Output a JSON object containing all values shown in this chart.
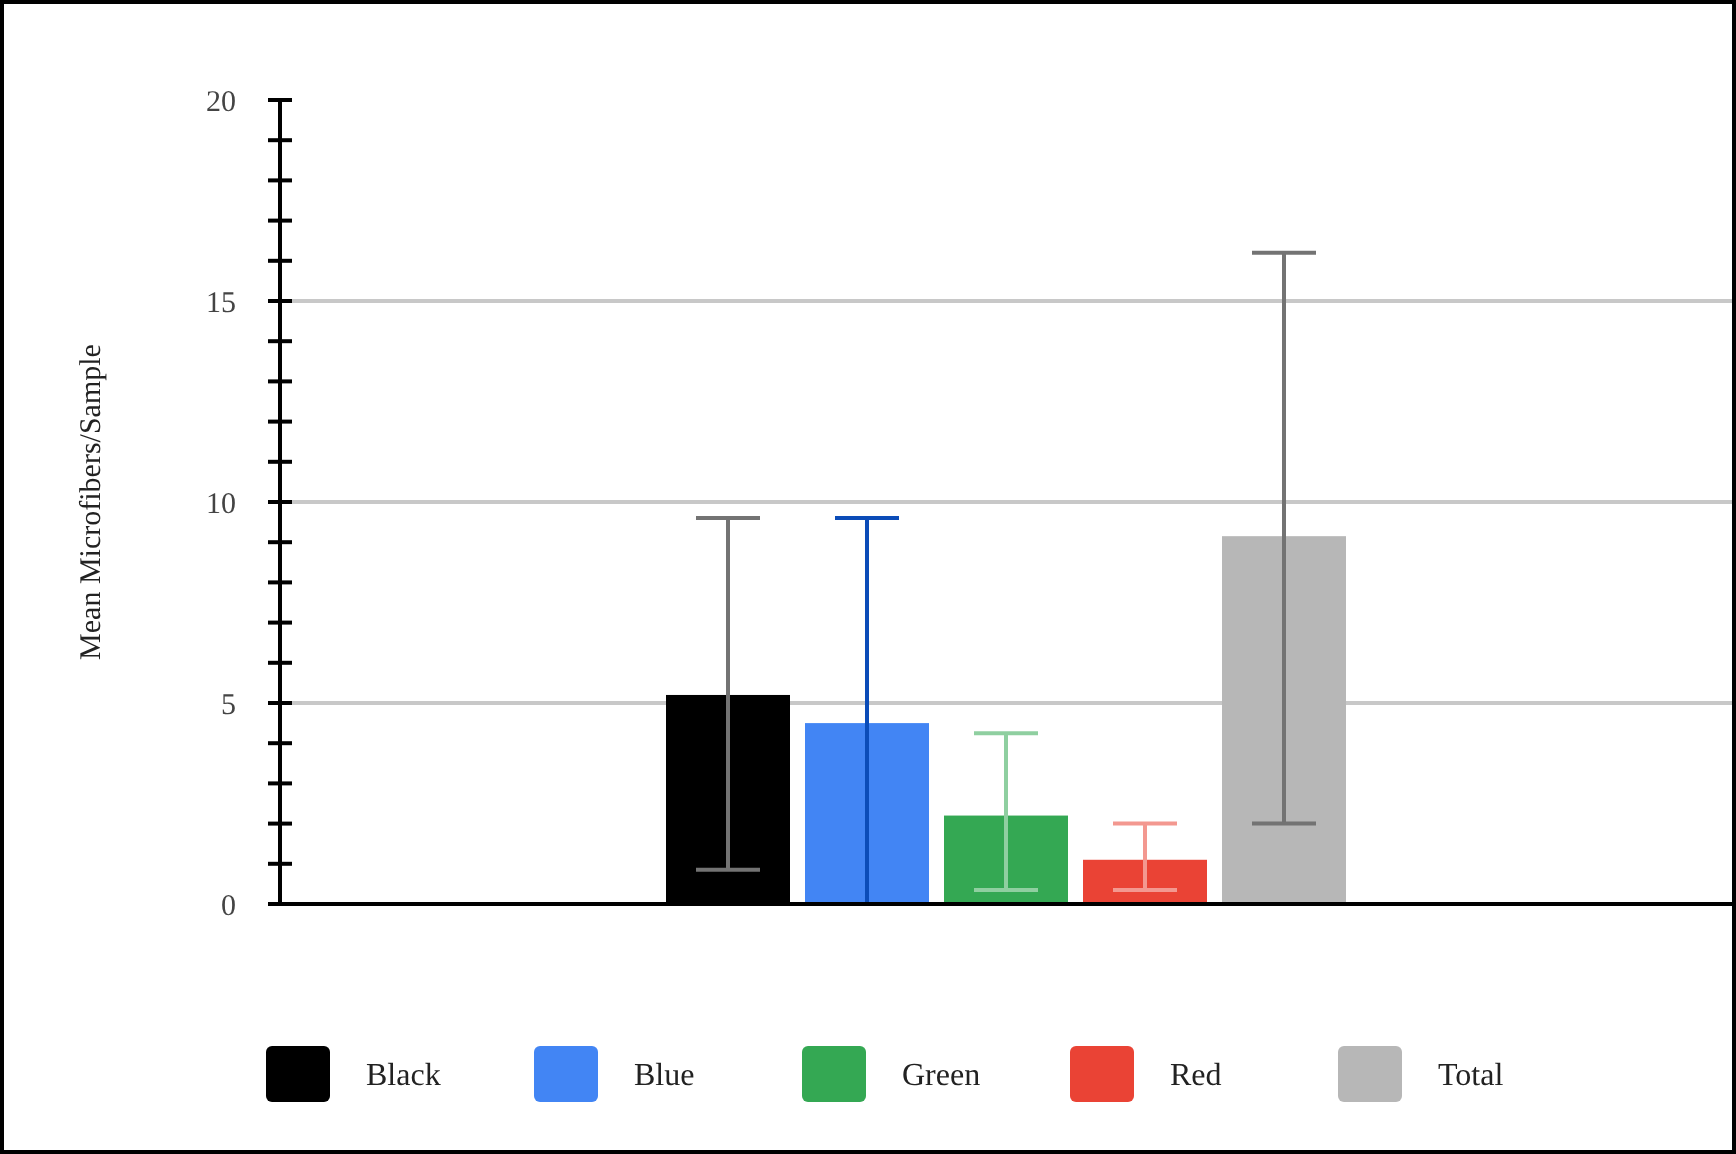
{
  "chart_data": {
    "type": "bar",
    "ylabel": "Mean Microfibers/Sample",
    "categories": [
      null
    ],
    "series": [
      {
        "name": "Black",
        "color": "#000000",
        "values": [
          5.2
        ],
        "errors": [
          [
            0.85,
            9.6
          ]
        ]
      },
      {
        "name": "Blue",
        "color": "#4285f4",
        "values": [
          4.5
        ],
        "errors": [
          [
            0,
            9.6
          ]
        ]
      },
      {
        "name": "Green",
        "color": "#34a853",
        "values": [
          2.2
        ],
        "errors": [
          [
            0.35,
            4.25
          ]
        ]
      },
      {
        "name": "Red",
        "color": "#ea4335",
        "values": [
          1.1
        ],
        "errors": [
          [
            0.35,
            2.0
          ]
        ]
      },
      {
        "name": "Total",
        "color": "#b7b7b7",
        "values": [
          9.15
        ],
        "errors": [
          [
            2.0,
            16.2
          ]
        ]
      }
    ],
    "ylim": [
      0,
      20
    ],
    "yticks": [
      0,
      {
        "value": 1,
        "label": null
      },
      {
        "value": 2,
        "label": null
      },
      {
        "value": 3,
        "label": null
      },
      {
        "value": 4,
        "label": null
      },
      5,
      {
        "value": 6,
        "label": null
      },
      {
        "value": 7,
        "label": null
      },
      {
        "value": 8,
        "label": null
      },
      {
        "value": 9,
        "label": null
      },
      10,
      {
        "value": 11,
        "label": null
      },
      {
        "value": 12,
        "label": null
      },
      {
        "value": 13,
        "label": null
      },
      {
        "value": 14,
        "label": null
      },
      15,
      {
        "value": 16,
        "label": null
      },
      {
        "value": 17,
        "label": null
      },
      {
        "value": 18,
        "label": null
      },
      {
        "value": 19,
        "label": null
      },
      20
    ],
    "grid": "y",
    "legend": "bottom"
  }
}
